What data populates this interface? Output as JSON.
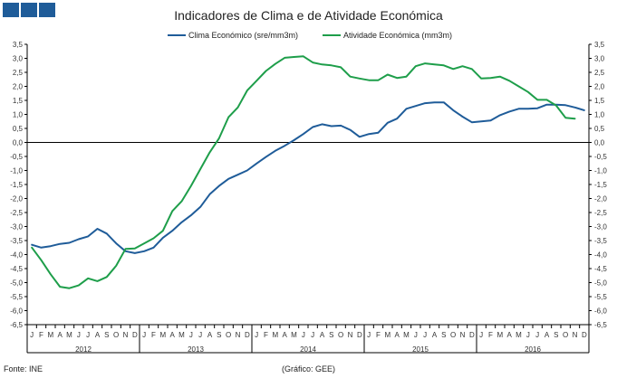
{
  "header": {
    "icon_name": "brand-squares-icon",
    "brand_color": "#1f5c99"
  },
  "chart_data": {
    "type": "line",
    "title": "Indicadores de Clima e de Atividade Económica",
    "xlabel": "",
    "ylabel": "",
    "ylim": [
      -6.5,
      3.5
    ],
    "ytick_step": 0.5,
    "grid": false,
    "legend_position": "top",
    "month_labels": [
      "J",
      "F",
      "M",
      "A",
      "M",
      "J",
      "J",
      "A",
      "S",
      "O",
      "N",
      "D"
    ],
    "years": [
      "2012",
      "2013",
      "2014",
      "2015",
      "2016"
    ],
    "series": [
      {
        "name": "Clima Económico (sre/mm3m)",
        "color": "#1f5c99",
        "values": [
          -3.65,
          -3.75,
          -3.7,
          -3.62,
          -3.58,
          -3.45,
          -3.35,
          -3.08,
          -3.25,
          -3.6,
          -3.88,
          -3.95,
          -3.88,
          -3.75,
          -3.4,
          -3.15,
          -2.85,
          -2.6,
          -2.3,
          -1.85,
          -1.55,
          -1.3,
          -1.15,
          -1.0,
          -0.75,
          -0.52,
          -0.3,
          -0.12,
          0.08,
          0.3,
          0.55,
          0.65,
          0.58,
          0.6,
          0.45,
          0.2,
          0.3,
          0.35,
          0.7,
          0.85,
          1.2,
          1.3,
          1.4,
          1.43,
          1.43,
          1.15,
          0.92,
          0.72,
          0.75,
          0.78,
          0.97,
          1.1,
          1.2,
          1.2,
          1.22,
          1.35,
          1.35,
          1.33,
          1.25,
          1.15
        ]
      },
      {
        "name": "Atividade Económica (mm3m)",
        "color": "#1e9e4a",
        "values": [
          -3.75,
          -4.2,
          -4.7,
          -5.15,
          -5.2,
          -5.1,
          -4.85,
          -4.95,
          -4.8,
          -4.4,
          -3.8,
          -3.78,
          -3.6,
          -3.42,
          -3.15,
          -2.45,
          -2.1,
          -1.55,
          -0.95,
          -0.35,
          0.15,
          0.9,
          1.25,
          1.85,
          2.2,
          2.55,
          2.8,
          3.02,
          3.05,
          3.07,
          2.85,
          2.78,
          2.75,
          2.68,
          2.35,
          2.28,
          2.22,
          2.22,
          2.42,
          2.3,
          2.35,
          2.72,
          2.82,
          2.78,
          2.75,
          2.62,
          2.72,
          2.62,
          2.28,
          2.3,
          2.35,
          2.2,
          2.0,
          1.8,
          1.52,
          1.52,
          1.32,
          0.88,
          0.85
        ]
      }
    ]
  },
  "footer": {
    "source": "Fonte: INE",
    "credit": "(Gráfico: GEE)"
  }
}
